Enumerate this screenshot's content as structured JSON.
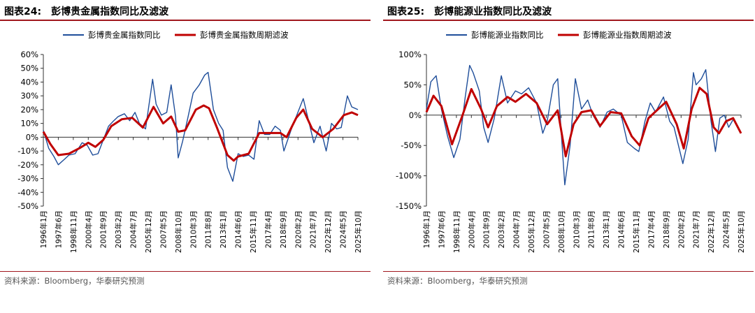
{
  "panels": [
    {
      "figure_no": "图表24:",
      "figure_title": "彭博贵金属指数同比及滤波",
      "source": "资料来源：Bloomberg，华泰研究预测"
    },
    {
      "figure_no": "图表25:",
      "figure_title": "彭博能源业指数同比及滤波",
      "source": "资料来源：Bloomberg，华泰研究预测"
    }
  ],
  "colors": {
    "raw": "#1f4e9a",
    "filtered": "#c00000",
    "axis": "#333333",
    "accent": "#a0171d"
  },
  "chart_data": [
    {
      "type": "line",
      "title": "",
      "xlabel": "",
      "ylabel": "",
      "ylim": [
        -0.5,
        0.6
      ],
      "yticks": [
        -0.5,
        -0.4,
        -0.3,
        -0.2,
        -0.1,
        0,
        0.1,
        0.2,
        0.3,
        0.4,
        0.5,
        0.6
      ],
      "ytick_labels": [
        "-50%",
        "-40%",
        "-30%",
        "-20%",
        "-10%",
        "0%",
        "10%",
        "20%",
        "30%",
        "40%",
        "50%",
        "60%"
      ],
      "xlim": [
        "1996-01",
        "2025-10"
      ],
      "xtick_labels": [
        "1996年1月",
        "1997年6月",
        "1998年11月",
        "2000年4月",
        "2001年9月",
        "2003年2月",
        "2004年7月",
        "2005年12月",
        "2007年5月",
        "2008年10月",
        "2010年3月",
        "2011年8月",
        "2013年1月",
        "2014年6月",
        "2015年11月",
        "2017年4月",
        "2018年9月",
        "2020年2月",
        "2021年7月",
        "2022年12月",
        "2024年5月",
        "2025年10月"
      ],
      "legend_position": "top",
      "series": [
        {
          "name": "彭博贵金属指数同比",
          "color_key": "raw",
          "points": [
            [
              "1996-01",
              0.05
            ],
            [
              "1996-07",
              -0.08
            ],
            [
              "1997-01",
              -0.14
            ],
            [
              "1997-06",
              -0.2
            ],
            [
              "1998-01",
              -0.16
            ],
            [
              "1998-06",
              -0.13
            ],
            [
              "1999-01",
              -0.12
            ],
            [
              "1999-09",
              -0.04
            ],
            [
              "2000-03",
              -0.06
            ],
            [
              "2000-09",
              -0.13
            ],
            [
              "2001-03",
              -0.12
            ],
            [
              "2001-09",
              -0.02
            ],
            [
              "2002-03",
              0.08
            ],
            [
              "2002-09",
              0.12
            ],
            [
              "2003-02",
              0.15
            ],
            [
              "2003-09",
              0.17
            ],
            [
              "2004-03",
              0.12
            ],
            [
              "2004-09",
              0.18
            ],
            [
              "2005-02",
              0.1
            ],
            [
              "2005-09",
              0.06
            ],
            [
              "2006-03",
              0.33
            ],
            [
              "2006-05",
              0.42
            ],
            [
              "2006-09",
              0.24
            ],
            [
              "2007-03",
              0.16
            ],
            [
              "2007-09",
              0.18
            ],
            [
              "2008-02",
              0.38
            ],
            [
              "2008-07",
              0.15
            ],
            [
              "2008-10",
              -0.15
            ],
            [
              "2009-03",
              -0.03
            ],
            [
              "2009-09",
              0.14
            ],
            [
              "2010-03",
              0.32
            ],
            [
              "2010-10",
              0.38
            ],
            [
              "2011-04",
              0.45
            ],
            [
              "2011-08",
              0.47
            ],
            [
              "2012-02",
              0.2
            ],
            [
              "2012-08",
              0.1
            ],
            [
              "2013-01",
              0.05
            ],
            [
              "2013-06",
              -0.22
            ],
            [
              "2013-12",
              -0.32
            ],
            [
              "2014-06",
              -0.12
            ],
            [
              "2014-12",
              -0.14
            ],
            [
              "2015-06",
              -0.13
            ],
            [
              "2015-12",
              -0.16
            ],
            [
              "2016-06",
              0.12
            ],
            [
              "2016-12",
              0.02
            ],
            [
              "2017-06",
              0.02
            ],
            [
              "2017-12",
              0.08
            ],
            [
              "2018-06",
              0.05
            ],
            [
              "2018-10",
              -0.1
            ],
            [
              "2019-06",
              0.05
            ],
            [
              "2019-12",
              0.15
            ],
            [
              "2020-08",
              0.28
            ],
            [
              "2021-02",
              0.12
            ],
            [
              "2021-08",
              -0.04
            ],
            [
              "2022-03",
              0.08
            ],
            [
              "2022-10",
              -0.1
            ],
            [
              "2023-04",
              0.1
            ],
            [
              "2023-10",
              0.06
            ],
            [
              "2024-03",
              0.07
            ],
            [
              "2024-10",
              0.3
            ],
            [
              "2025-03",
              0.22
            ],
            [
              "2025-10",
              0.2
            ]
          ]
        },
        {
          "name": "彭博贵金属指数周期滤波",
          "color_key": "filtered",
          "points": [
            [
              "1996-01",
              0.04
            ],
            [
              "1996-09",
              -0.05
            ],
            [
              "1997-06",
              -0.13
            ],
            [
              "1998-06",
              -0.12
            ],
            [
              "1999-06",
              -0.08
            ],
            [
              "2000-04",
              -0.04
            ],
            [
              "2000-12",
              -0.07
            ],
            [
              "2001-09",
              -0.02
            ],
            [
              "2002-06",
              0.08
            ],
            [
              "2003-06",
              0.13
            ],
            [
              "2004-06",
              0.14
            ],
            [
              "2005-06",
              0.07
            ],
            [
              "2006-06",
              0.22
            ],
            [
              "2007-05",
              0.1
            ],
            [
              "2008-02",
              0.15
            ],
            [
              "2008-10",
              0.04
            ],
            [
              "2009-06",
              0.05
            ],
            [
              "2010-06",
              0.2
            ],
            [
              "2011-03",
              0.23
            ],
            [
              "2011-09",
              0.21
            ],
            [
              "2012-06",
              0.07
            ],
            [
              "2013-06",
              -0.13
            ],
            [
              "2014-01",
              -0.17
            ],
            [
              "2014-06",
              -0.14
            ],
            [
              "2015-06",
              -0.12
            ],
            [
              "2016-06",
              0.03
            ],
            [
              "2017-06",
              0.03
            ],
            [
              "2018-06",
              0.03
            ],
            [
              "2019-01",
              0.0
            ],
            [
              "2019-12",
              0.14
            ],
            [
              "2020-08",
              0.2
            ],
            [
              "2021-06",
              0.06
            ],
            [
              "2022-06",
              0.0
            ],
            [
              "2023-06",
              0.06
            ],
            [
              "2024-06",
              0.16
            ],
            [
              "2025-03",
              0.18
            ],
            [
              "2025-10",
              0.16
            ]
          ]
        }
      ]
    },
    {
      "type": "line",
      "title": "",
      "xlabel": "",
      "ylabel": "",
      "ylim": [
        -1.5,
        1.0
      ],
      "yticks": [
        -1.5,
        -1.0,
        -0.5,
        0,
        0.5,
        1.0
      ],
      "ytick_labels": [
        "-150%",
        "-100%",
        "-50%",
        "0%",
        "50%",
        "100%"
      ],
      "xlim": [
        "1996-01",
        "2025-10"
      ],
      "xtick_labels": [
        "1996年1月",
        "1997年6月",
        "1998年11月",
        "2000年4月",
        "2001年9月",
        "2003年2月",
        "2004年7月",
        "2005年12月",
        "2007年5月",
        "2008年10月",
        "2010年3月",
        "2011年8月",
        "2013年1月",
        "2014年6月",
        "2015年11月",
        "2017年4月",
        "2018年9月",
        "2020年2月",
        "2021年7月",
        "2022年12月",
        "2024年5月",
        "2025年10月"
      ],
      "legend_position": "top",
      "series": [
        {
          "name": "彭博能源业指数同比",
          "color_key": "raw",
          "points": [
            [
              "1996-01",
              0.1
            ],
            [
              "1996-06",
              0.55
            ],
            [
              "1996-12",
              0.65
            ],
            [
              "1997-06",
              0.1
            ],
            [
              "1998-01",
              -0.35
            ],
            [
              "1998-08",
              -0.7
            ],
            [
              "1999-03",
              -0.4
            ],
            [
              "1999-09",
              0.3
            ],
            [
              "2000-02",
              0.82
            ],
            [
              "2000-06",
              0.7
            ],
            [
              "2001-01",
              0.4
            ],
            [
              "2001-06",
              -0.2
            ],
            [
              "2001-11",
              -0.45
            ],
            [
              "2002-06",
              -0.05
            ],
            [
              "2003-02",
              0.65
            ],
            [
              "2003-09",
              0.2
            ],
            [
              "2004-06",
              0.4
            ],
            [
              "2005-01",
              0.35
            ],
            [
              "2005-09",
              0.45
            ],
            [
              "2006-06",
              0.2
            ],
            [
              "2007-01",
              -0.3
            ],
            [
              "2007-06",
              -0.1
            ],
            [
              "2008-01",
              0.5
            ],
            [
              "2008-06",
              0.6
            ],
            [
              "2008-10",
              -0.3
            ],
            [
              "2009-02",
              -1.15
            ],
            [
              "2009-08",
              -0.5
            ],
            [
              "2010-02",
              0.6
            ],
            [
              "2010-09",
              0.1
            ],
            [
              "2011-04",
              0.25
            ],
            [
              "2011-10",
              0.0
            ],
            [
              "2012-06",
              -0.2
            ],
            [
              "2013-02",
              0.05
            ],
            [
              "2013-09",
              0.1
            ],
            [
              "2014-06",
              0.0
            ],
            [
              "2015-01",
              -0.45
            ],
            [
              "2015-09",
              -0.55
            ],
            [
              "2016-02",
              -0.6
            ],
            [
              "2016-09",
              -0.1
            ],
            [
              "2017-03",
              0.2
            ],
            [
              "2017-09",
              0.05
            ],
            [
              "2018-06",
              0.3
            ],
            [
              "2019-01",
              -0.1
            ],
            [
              "2019-06",
              -0.2
            ],
            [
              "2020-04",
              -0.8
            ],
            [
              "2020-10",
              -0.4
            ],
            [
              "2021-04",
              0.7
            ],
            [
              "2021-07",
              0.5
            ],
            [
              "2022-01",
              0.6
            ],
            [
              "2022-06",
              0.75
            ],
            [
              "2022-12",
              -0.1
            ],
            [
              "2023-05",
              -0.6
            ],
            [
              "2023-10",
              -0.05
            ],
            [
              "2024-03",
              0.0
            ],
            [
              "2024-08",
              -0.2
            ],
            [
              "2025-02",
              -0.05
            ]
          ]
        },
        {
          "name": "彭博能源业指数周期滤波",
          "color_key": "filtered",
          "points": [
            [
              "1996-01",
              0.05
            ],
            [
              "1996-09",
              0.32
            ],
            [
              "1997-06",
              0.15
            ],
            [
              "1998-06",
              -0.48
            ],
            [
              "1999-06",
              0.0
            ],
            [
              "2000-04",
              0.43
            ],
            [
              "2001-03",
              0.1
            ],
            [
              "2001-11",
              -0.2
            ],
            [
              "2002-09",
              0.15
            ],
            [
              "2003-09",
              0.3
            ],
            [
              "2004-06",
              0.22
            ],
            [
              "2005-06",
              0.35
            ],
            [
              "2006-06",
              0.2
            ],
            [
              "2007-06",
              -0.15
            ],
            [
              "2008-06",
              0.08
            ],
            [
              "2009-03",
              -0.68
            ],
            [
              "2009-12",
              -0.15
            ],
            [
              "2010-09",
              0.05
            ],
            [
              "2011-08",
              0.08
            ],
            [
              "2012-06",
              -0.18
            ],
            [
              "2013-06",
              0.05
            ],
            [
              "2014-06",
              0.03
            ],
            [
              "2015-06",
              -0.35
            ],
            [
              "2016-03",
              -0.5
            ],
            [
              "2017-01",
              -0.05
            ],
            [
              "2017-12",
              0.1
            ],
            [
              "2018-09",
              0.22
            ],
            [
              "2019-09",
              -0.15
            ],
            [
              "2020-05",
              -0.55
            ],
            [
              "2021-02",
              0.1
            ],
            [
              "2021-11",
              0.45
            ],
            [
              "2022-07",
              0.35
            ],
            [
              "2023-03",
              -0.2
            ],
            [
              "2023-09",
              -0.3
            ],
            [
              "2024-05",
              -0.1
            ],
            [
              "2025-01",
              -0.05
            ],
            [
              "2025-10",
              -0.3
            ]
          ]
        }
      ]
    }
  ]
}
